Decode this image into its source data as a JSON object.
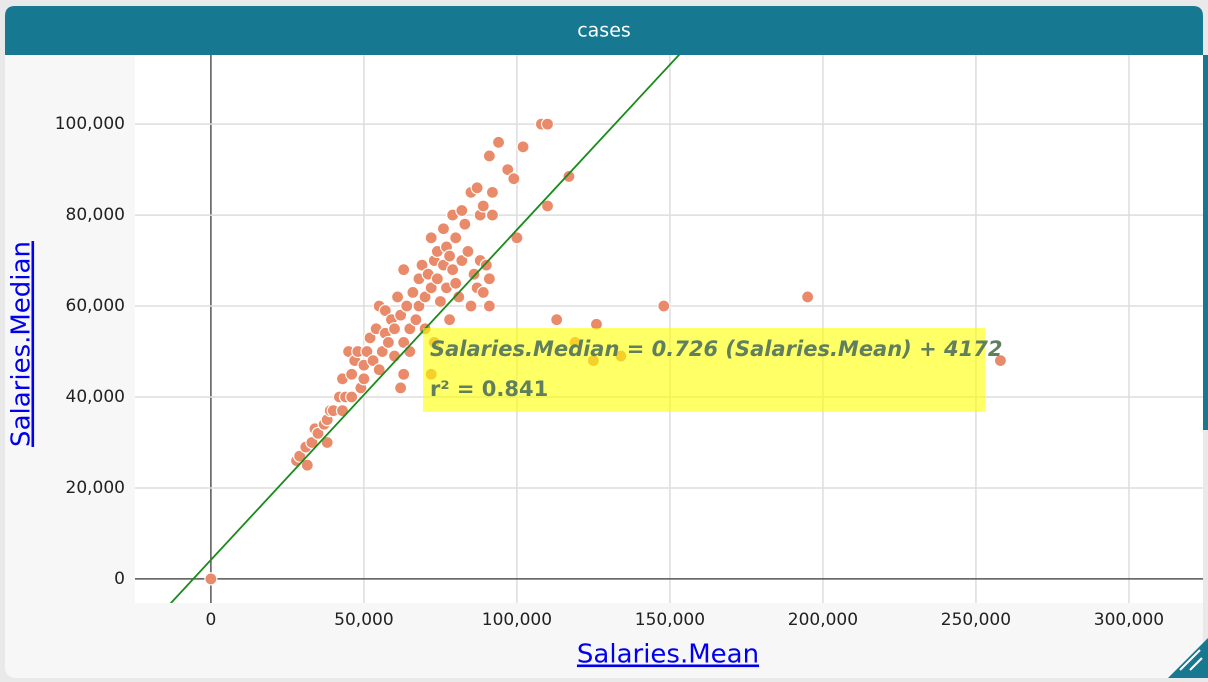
{
  "chart_data": {
    "type": "scatter",
    "title": "cases",
    "x_label": "Salaries.Mean",
    "y_label": "Salaries.Median",
    "color": "#e98a6a",
    "xlim": [
      -24800,
      324200
    ],
    "ylim": [
      -5300,
      115200
    ],
    "xticks": [
      0,
      {
        "value": 50000,
        "label": "50,000"
      },
      {
        "value": 100000,
        "label": "100,000"
      },
      {
        "value": 150000,
        "label": "150,000"
      },
      {
        "value": 200000,
        "label": "200,000"
      },
      {
        "value": 250000,
        "label": "250,000"
      },
      {
        "value": 300000,
        "label": "300,000"
      }
    ],
    "yticks": [
      0,
      {
        "value": 20000,
        "label": "20,000"
      },
      {
        "value": 40000,
        "label": "40,000"
      },
      {
        "value": 60000,
        "label": "60,000"
      },
      {
        "value": 80000,
        "label": "80,000"
      },
      {
        "value": 100000,
        "label": "100,000"
      }
    ],
    "grid": true,
    "x": [
      0,
      258000,
      195000,
      148000,
      126000,
      113000,
      119000,
      125000,
      134000,
      108000,
      110000,
      117000,
      110000,
      100000,
      94000,
      102000,
      91000,
      97000,
      99000,
      72000,
      73000,
      62000,
      63000,
      28000,
      29000,
      31000,
      31500,
      33000,
      34000,
      35000,
      38000,
      37000,
      38000,
      39000,
      40000,
      42000,
      43000,
      43000,
      44000,
      45000,
      46000,
      46000,
      47000,
      48000,
      49000,
      50000,
      50000,
      51000,
      52000,
      53000,
      54000,
      55000,
      55000,
      56000,
      57000,
      57000,
      58000,
      59000,
      60000,
      60000,
      61000,
      62000,
      63000,
      63000,
      64000,
      65000,
      65000,
      66000,
      67000,
      68000,
      68000,
      69000,
      70000,
      70000,
      71000,
      72000,
      72000,
      73000,
      74000,
      74000,
      75000,
      76000,
      76000,
      77000,
      77000,
      78000,
      78000,
      79000,
      79000,
      80000,
      80000,
      81000,
      82000,
      82000,
      83000,
      84000,
      85000,
      85000,
      86000,
      87000,
      87000,
      88000,
      88000,
      89000,
      89000,
      90000,
      91000,
      92000,
      92000,
      91000
    ],
    "y": [
      0,
      48000,
      62000,
      60000,
      56000,
      57000,
      52000,
      48000,
      49000,
      100000,
      100000,
      88500,
      82000,
      75000,
      96000,
      95000,
      93000,
      90000,
      88000,
      45000,
      52000,
      42000,
      45000,
      26000,
      27000,
      29000,
      25000,
      30000,
      33000,
      32000,
      30000,
      34000,
      35000,
      37000,
      37000,
      40000,
      37000,
      44000,
      40000,
      50000,
      45000,
      40000,
      48000,
      50000,
      42000,
      44000,
      47000,
      50000,
      53000,
      48000,
      55000,
      46000,
      60000,
      50000,
      54000,
      59000,
      52000,
      57000,
      55000,
      49000,
      62000,
      58000,
      52000,
      68000,
      60000,
      55000,
      50000,
      63000,
      57000,
      66000,
      60000,
      69000,
      62000,
      55000,
      67000,
      75000,
      64000,
      70000,
      72000,
      66000,
      61000,
      77000,
      69000,
      73000,
      64000,
      71000,
      57000,
      80000,
      68000,
      65000,
      75000,
      62000,
      81000,
      70000,
      78000,
      72000,
      85000,
      60000,
      67000,
      86000,
      64000,
      80000,
      70000,
      82000,
      63000,
      69000,
      66000,
      80000,
      85000,
      60000
    ],
    "regression": {
      "slope": 0.726,
      "intercept": 4172,
      "r_squared": 0.841,
      "equation": "Salaries.Median = 0.726 (Salaries.Mean) + 4172",
      "r_squared_text": "r² = 0.841",
      "color": "#1a8a1a"
    }
  }
}
